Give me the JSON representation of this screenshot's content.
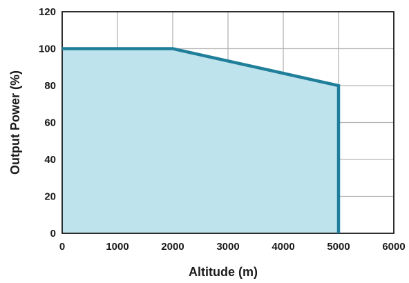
{
  "chart_data": {
    "type": "area",
    "title": "",
    "xlabel": "Altitude (m)",
    "ylabel": "Output Power (%)",
    "xlim": [
      0,
      6000
    ],
    "ylim": [
      0,
      120
    ],
    "x_ticks": [
      0,
      1000,
      2000,
      3000,
      4000,
      5000,
      6000
    ],
    "y_ticks": [
      0,
      20,
      40,
      60,
      80,
      100,
      120
    ],
    "x_tick_labels": [
      "0",
      "1000",
      "2000",
      "3000",
      "4000",
      "5000",
      "6000"
    ],
    "y_tick_labels": [
      "0",
      "20",
      "40",
      "60",
      "80",
      "100",
      "120"
    ],
    "grid": true,
    "series": [
      {
        "x": [
          0,
          2000,
          5000,
          5000
        ],
        "y": [
          100,
          100,
          80,
          0
        ]
      }
    ],
    "colors": {
      "line": "#1f7f9b",
      "fill": "#bfe3ec",
      "grid": "#b3b3b3",
      "frame": "#1a1a1a"
    }
  }
}
